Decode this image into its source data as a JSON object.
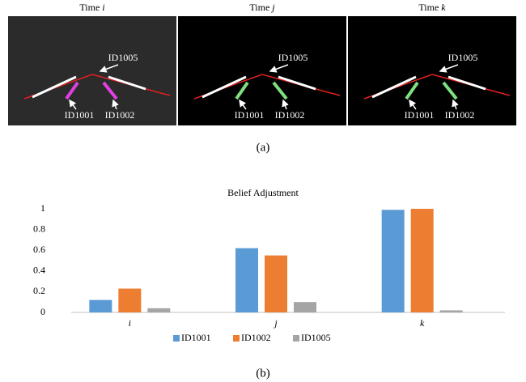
{
  "figure_a": {
    "panels": [
      {
        "title": "Time",
        "var": "i",
        "labels": [
          "ID1005",
          "ID1001",
          "ID1002"
        ]
      },
      {
        "title": "Time",
        "var": "j",
        "labels": [
          "ID1005",
          "ID1001",
          "ID1002"
        ]
      },
      {
        "title": "Time",
        "var": "k",
        "labels": [
          "ID1005",
          "ID1001",
          "ID1002"
        ]
      }
    ],
    "caption": "(a)"
  },
  "chart_data": {
    "type": "bar",
    "title": "Belief Adjustment",
    "categories": [
      "i",
      "j",
      "k"
    ],
    "series": [
      {
        "name": "ID1001",
        "color": "#5b9bd5",
        "values": [
          0.12,
          0.62,
          0.99
        ]
      },
      {
        "name": "ID1002",
        "color": "#ed7d31",
        "values": [
          0.23,
          0.55,
          1.0
        ]
      },
      {
        "name": "ID1005",
        "color": "#a5a5a5",
        "values": [
          0.04,
          0.1,
          0.02
        ]
      }
    ],
    "ylim": [
      0,
      1
    ],
    "yticks": [
      0,
      0.2,
      0.4,
      0.6,
      0.8,
      1
    ],
    "grid": false,
    "legend": "bottom"
  },
  "caption_b": "(b)"
}
